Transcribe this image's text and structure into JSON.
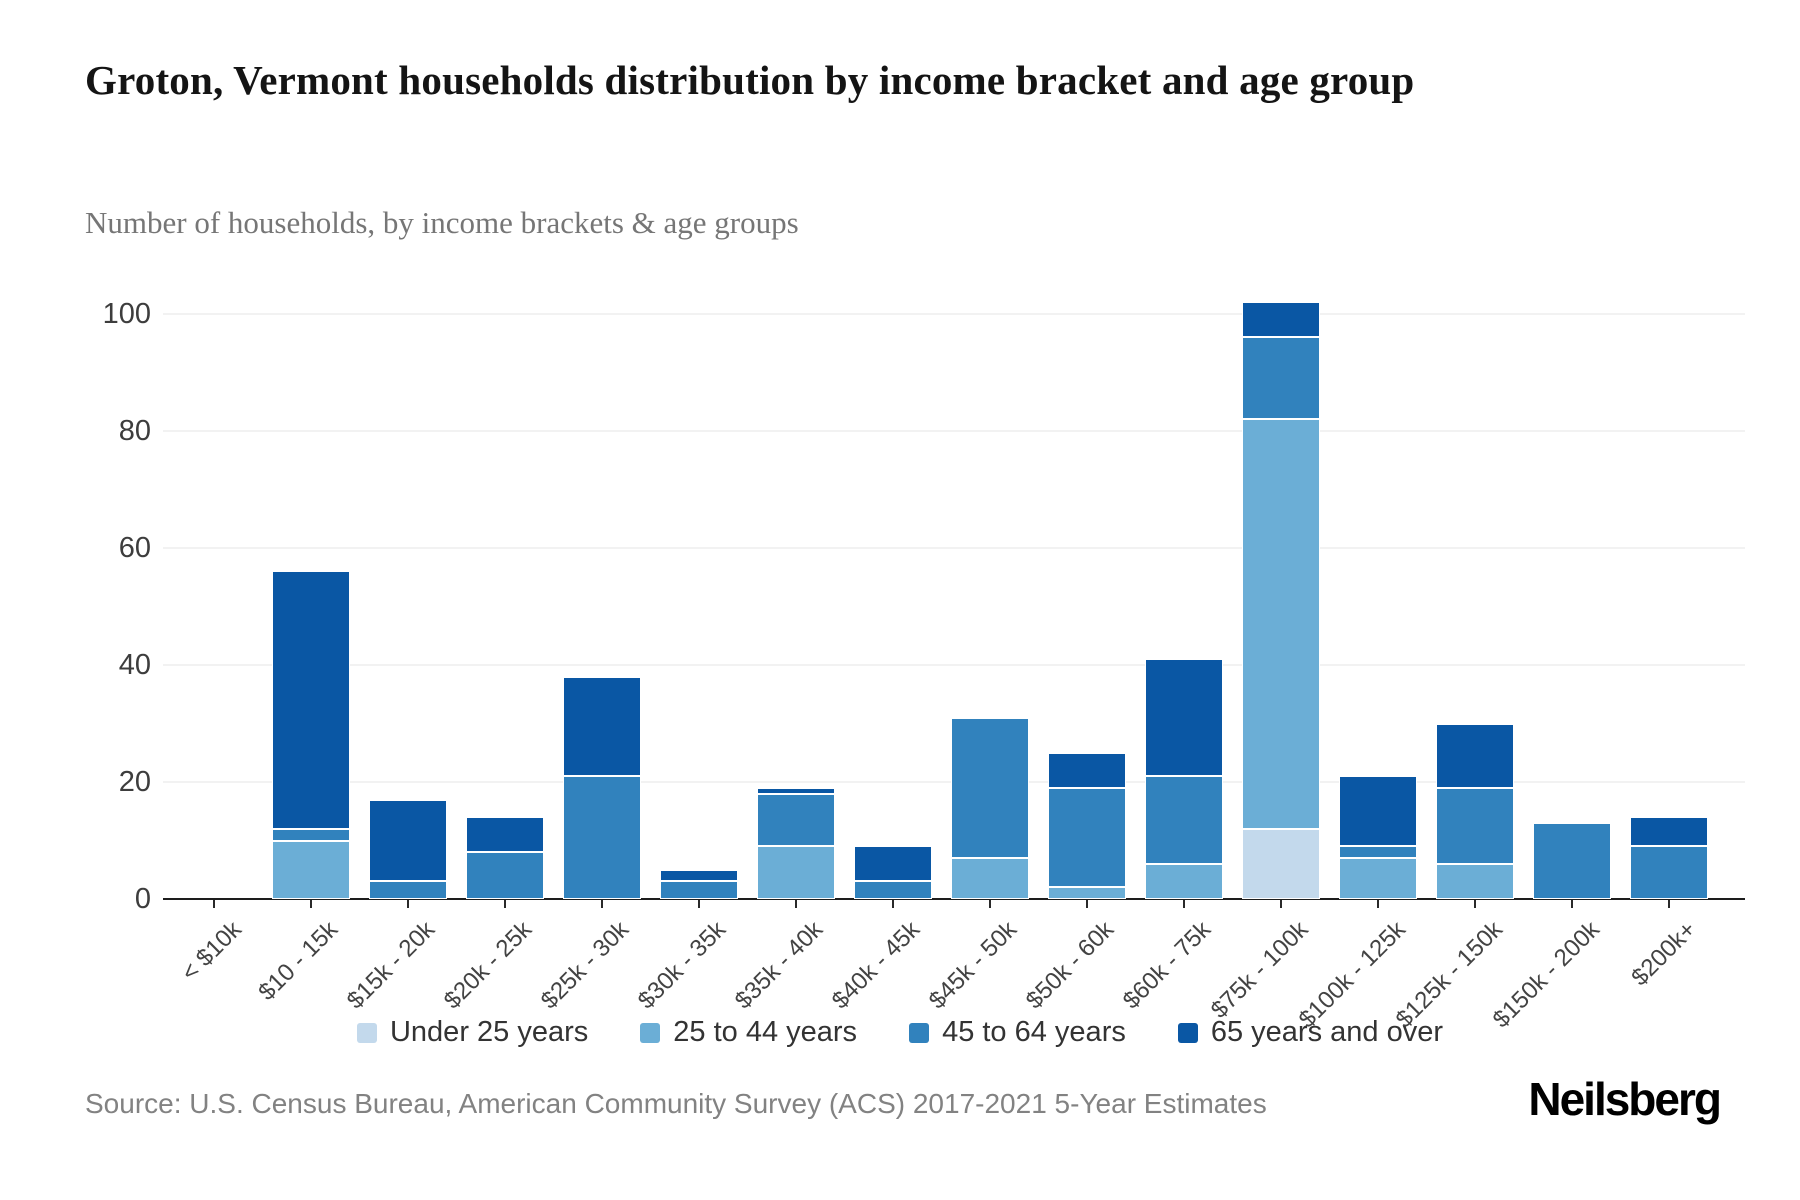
{
  "header": {
    "title": "Groton, Vermont households distribution by income bracket and age group",
    "subtitle": "Number of households, by income brackets & age groups"
  },
  "chart_data": {
    "type": "bar",
    "stacked": true,
    "title": "Groton, Vermont households distribution by income bracket and age group",
    "subtitle": "Number of households, by income brackets & age groups",
    "categories": [
      "< $10k",
      "$10 - 15k",
      "$15k - 20k",
      "$20k - 25k",
      "$25k - 30k",
      "$30k - 35k",
      "$35k - 40k",
      "$40k - 45k",
      "$45k - 50k",
      "$50k - 60k",
      "$60k - 75k",
      "$75k - 100k",
      "$100k - 125k",
      "$125k - 150k",
      "$150k - 200k",
      "$200k+"
    ],
    "series": [
      {
        "name": "Under 25 years",
        "color": "#c3d9ec",
        "values": [
          0,
          0,
          0,
          0,
          0,
          0,
          0,
          0,
          0,
          0,
          0,
          12,
          0,
          0,
          0,
          0
        ]
      },
      {
        "name": "25 to 44 years",
        "color": "#6baed6",
        "values": [
          0,
          10,
          0,
          0,
          0,
          0,
          9,
          0,
          7,
          2,
          6,
          70,
          7,
          6,
          0,
          0
        ]
      },
      {
        "name": "45 to 64 years",
        "color": "#3182bd",
        "values": [
          0,
          2,
          3,
          8,
          21,
          3,
          9,
          3,
          24,
          17,
          15,
          14,
          2,
          13,
          13,
          9
        ]
      },
      {
        "name": "65 years and over",
        "color": "#0a57a4",
        "values": [
          0,
          44,
          14,
          6,
          17,
          2,
          1,
          6,
          0,
          6,
          20,
          6,
          12,
          11,
          0,
          5
        ]
      }
    ],
    "totals": [
      0,
      56,
      17,
      14,
      38,
      5,
      19,
      9,
      31,
      25,
      41,
      102,
      21,
      30,
      13,
      14
    ],
    "y_ticks": [
      0,
      20,
      40,
      60,
      80,
      100
    ],
    "ylim": [
      0,
      106
    ],
    "xlabel": "",
    "ylabel": "",
    "grid": "horizontal",
    "legend_position": "bottom"
  },
  "footer": {
    "source": "Source: U.S. Census Bureau, American Community Survey (ACS) 2017-2021 5-Year Estimates",
    "logo": "Neilsberg"
  }
}
